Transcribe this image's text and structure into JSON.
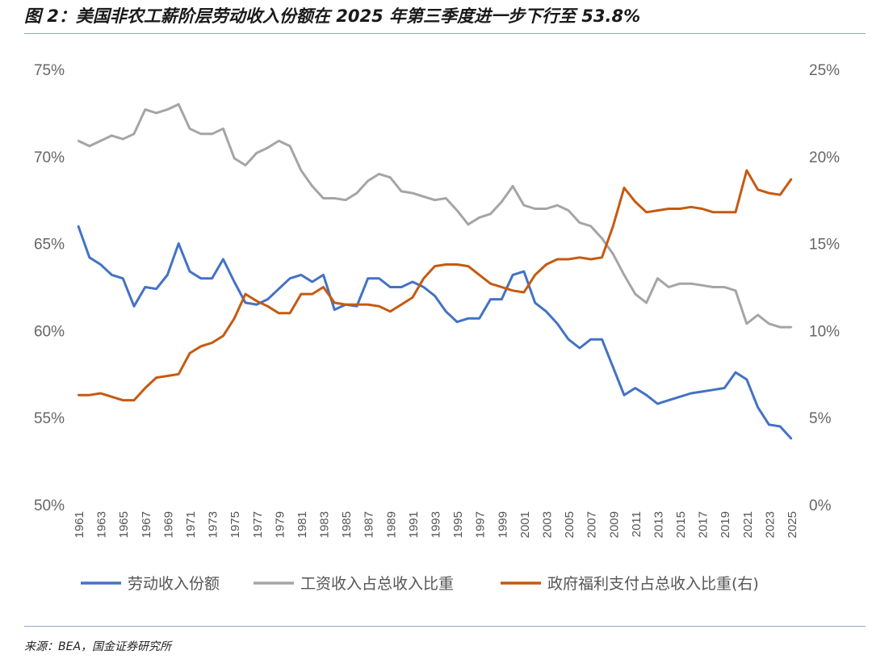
{
  "title": "图 2：美国非农工薪阶层劳动收入份额在 2025 年第三季度进一步下行至 53.8%",
  "source": "来源：BEA，国金证券研究所",
  "chart_data": {
    "type": "line",
    "title": "图 2：美国非农工薪阶层劳动收入份额在 2025 年第三季度进一步下行至 53.8%",
    "xlabel": "",
    "ylabel": "",
    "x": [
      1961,
      1962,
      1963,
      1964,
      1965,
      1966,
      1967,
      1968,
      1969,
      1970,
      1971,
      1972,
      1973,
      1974,
      1975,
      1976,
      1977,
      1978,
      1979,
      1980,
      1981,
      1982,
      1983,
      1984,
      1985,
      1986,
      1987,
      1988,
      1989,
      1990,
      1991,
      1992,
      1993,
      1994,
      1995,
      1996,
      1997,
      1998,
      1999,
      2000,
      2001,
      2002,
      2003,
      2004,
      2005,
      2006,
      2007,
      2008,
      2009,
      2010,
      2011,
      2012,
      2013,
      2014,
      2015,
      2016,
      2017,
      2018,
      2019,
      2020,
      2021,
      2022,
      2023,
      2024,
      2025
    ],
    "x_tick_labels": [
      "1961",
      "1963",
      "1965",
      "1967",
      "1969",
      "1971",
      "1973",
      "1975",
      "1977",
      "1979",
      "1981",
      "1983",
      "1985",
      "1987",
      "1989",
      "1991",
      "1993",
      "1995",
      "1997",
      "1999",
      "2001",
      "2003",
      "2005",
      "2007",
      "2009",
      "2011",
      "2013",
      "2015",
      "2017",
      "2019",
      "2021",
      "2023",
      "2025"
    ],
    "y_left": {
      "ylim": [
        50,
        75
      ],
      "ticks": [
        "50%",
        "55%",
        "60%",
        "65%",
        "70%",
        "75%"
      ]
    },
    "y_right": {
      "ylim": [
        0,
        25
      ],
      "ticks": [
        "0%",
        "5%",
        "10%",
        "15%",
        "20%",
        "25%"
      ]
    },
    "grid": false,
    "legend_position": "bottom",
    "series": [
      {
        "name": "劳动收入份额",
        "axis": "left",
        "color": "#4472c4",
        "values": [
          66.0,
          64.2,
          63.8,
          63.2,
          63.0,
          61.4,
          62.5,
          62.4,
          63.2,
          65.0,
          63.4,
          63.0,
          63.0,
          64.1,
          62.8,
          61.6,
          61.5,
          61.8,
          62.4,
          63.0,
          63.2,
          62.8,
          63.2,
          61.2,
          61.5,
          61.4,
          63.0,
          63.0,
          62.5,
          62.5,
          62.8,
          62.5,
          62.0,
          61.1,
          60.5,
          60.7,
          60.7,
          61.8,
          61.8,
          63.2,
          63.4,
          61.6,
          61.1,
          60.4,
          59.5,
          59.0,
          59.5,
          59.5,
          57.9,
          56.3,
          56.7,
          56.3,
          55.8,
          56.0,
          56.2,
          56.4,
          56.5,
          56.6,
          56.7,
          57.6,
          57.2,
          55.6,
          54.6,
          54.5,
          53.8
        ]
      },
      {
        "name": "工资收入占总收入比重",
        "axis": "left",
        "color": "#a5a5a5",
        "values": [
          70.9,
          70.6,
          70.9,
          71.2,
          71.0,
          71.3,
          72.7,
          72.5,
          72.7,
          73.0,
          71.6,
          71.3,
          71.3,
          71.6,
          69.9,
          69.5,
          70.2,
          70.5,
          70.9,
          70.6,
          69.2,
          68.3,
          67.6,
          67.6,
          67.5,
          67.9,
          68.6,
          69.0,
          68.8,
          68.0,
          67.9,
          67.7,
          67.5,
          67.6,
          66.9,
          66.1,
          66.5,
          66.7,
          67.4,
          68.3,
          67.2,
          67.0,
          67.0,
          67.2,
          66.9,
          66.2,
          66.0,
          65.3,
          64.4,
          63.2,
          62.1,
          61.6,
          63.0,
          62.5,
          62.7,
          62.7,
          62.6,
          62.5,
          62.5,
          62.3,
          60.4,
          60.9,
          60.4,
          60.2,
          60.2
        ]
      },
      {
        "name": "政府福利支付占总收入比重(右)",
        "axis": "right",
        "color": "#c55a11",
        "values": [
          6.3,
          6.3,
          6.4,
          6.2,
          6.0,
          6.0,
          6.7,
          7.3,
          7.4,
          7.5,
          8.7,
          9.1,
          9.3,
          9.7,
          10.7,
          12.1,
          11.7,
          11.4,
          11.0,
          11.0,
          12.1,
          12.1,
          12.5,
          11.6,
          11.5,
          11.5,
          11.5,
          11.4,
          11.1,
          11.5,
          11.9,
          13.0,
          13.7,
          13.8,
          13.8,
          13.7,
          13.2,
          12.7,
          12.5,
          12.3,
          12.2,
          13.2,
          13.8,
          14.1,
          14.1,
          14.2,
          14.1,
          14.2,
          16.0,
          18.2,
          17.4,
          16.8,
          16.9,
          17.0,
          17.0,
          17.1,
          17.0,
          16.8,
          16.8,
          16.8,
          19.2,
          18.1,
          17.9,
          17.8,
          18.7
        ]
      }
    ]
  }
}
